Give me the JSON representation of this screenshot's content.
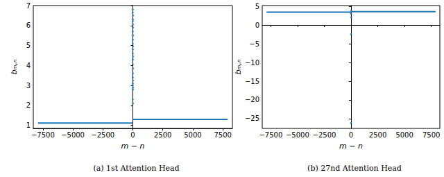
{
  "chart_data": [
    {
      "type": "scatter",
      "title": "(a) 1st Attention Head",
      "x_label": "m − n",
      "y_label": "bₘ,ₙ",
      "xlim": [
        -8300,
        8300
      ],
      "xticks": [
        {
          "value": -7500,
          "label": "−7500"
        },
        {
          "value": -5000,
          "label": "−5000"
        },
        {
          "value": -2500,
          "label": "−2500"
        },
        0,
        2500,
        5000,
        7500
      ],
      "ylim": [
        0.85,
        7.0
      ],
      "yticks": [
        1,
        2,
        3,
        4,
        5,
        6,
        7
      ],
      "grid": false,
      "series": [
        {
          "type": "line",
          "color": "#1f77b4",
          "x": [
            -7900,
            -15
          ],
          "values": [
            1.12,
            1.12
          ]
        },
        {
          "type": "line",
          "color": "#1f77b4",
          "x": [
            15,
            7900
          ],
          "values": [
            1.3,
            1.3
          ]
        },
        {
          "type": "scatter",
          "color": "#1f77b4",
          "x": [
            0,
            -10,
            10,
            0,
            -10,
            10,
            0,
            -10,
            10,
            0,
            -10,
            10,
            0,
            -10,
            10,
            0,
            -10,
            10,
            0,
            -10,
            10,
            0,
            -10,
            10,
            0,
            -10,
            10
          ],
          "values": [
            6.8,
            6.65,
            6.5,
            6.3,
            6.2,
            6.05,
            5.9,
            5.7,
            5.5,
            5.3,
            5.1,
            4.95,
            4.8,
            4.6,
            4.45,
            4.3,
            4.05,
            3.85,
            3.6,
            3.4,
            3.25,
            3.1,
            3.0,
            2.9,
            2.8,
            2.3,
            2.1
          ]
        }
      ]
    },
    {
      "type": "scatter",
      "title": "(b) 27nd Attention Head",
      "x_label": "m − n",
      "y_label": "bₘ,ₙ",
      "xlim": [
        -8300,
        8300
      ],
      "xticks": [
        {
          "value": -7500,
          "label": "−7500"
        },
        {
          "value": -5000,
          "label": "−5000"
        },
        {
          "value": -2500,
          "label": "−2500"
        },
        0,
        2500,
        5000,
        7500
      ],
      "ylim": [
        -27.6,
        5.2
      ],
      "yticks": [
        {
          "value": -25,
          "label": "−25"
        },
        {
          "value": -20,
          "label": "−20"
        },
        {
          "value": -15,
          "label": "−15"
        },
        {
          "value": -10,
          "label": "−10"
        },
        {
          "value": -5,
          "label": "−5"
        },
        0,
        5
      ],
      "grid": false,
      "series": [
        {
          "type": "line",
          "color": "#1f77b4",
          "x": [
            -7900,
            -15
          ],
          "values": [
            3.45,
            3.45
          ]
        },
        {
          "type": "line",
          "color": "#1f77b4",
          "x": [
            15,
            7900
          ],
          "values": [
            3.6,
            3.6
          ]
        },
        {
          "type": "scatter",
          "color": "#1f77b4",
          "x": [
            -10,
            0,
            10,
            0,
            0,
            10
          ],
          "values": [
            3.3,
            3.0,
            2.1,
            -2.5,
            -26.2,
            3.8
          ]
        }
      ]
    }
  ]
}
